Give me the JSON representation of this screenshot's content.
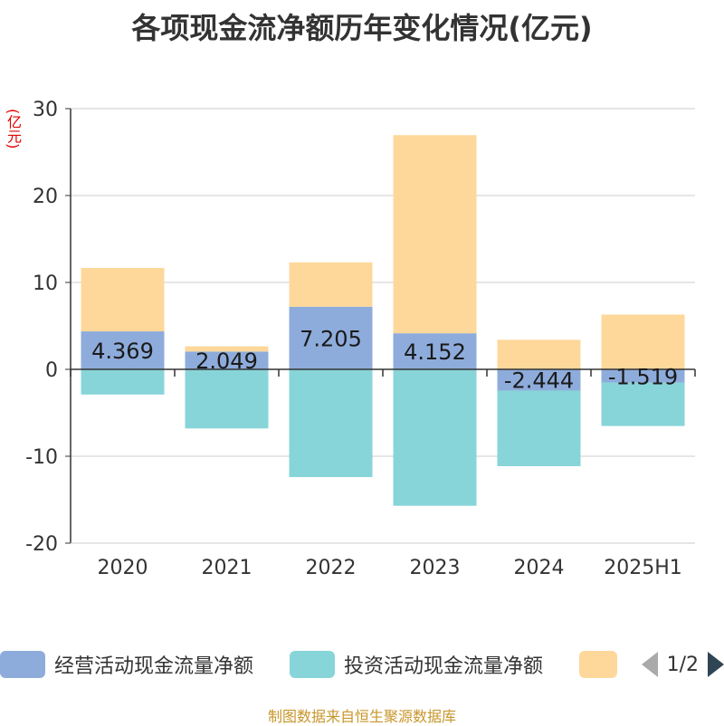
{
  "title": "各项现金流净额历年变化情况(亿元)",
  "unit_label": "(亿元)",
  "source": "制图数据来自恒生聚源数据库",
  "colors": {
    "operating": "#8eacdb",
    "investing": "#87d5d8",
    "financing": "#fdd89a"
  },
  "legend": {
    "items": [
      {
        "label": "经营活动现金流量净额",
        "color": "#8eacdb"
      },
      {
        "label": "投资活动现金流量净额",
        "color": "#87d5d8"
      },
      {
        "label": "",
        "color": "#fdd89a"
      }
    ],
    "page": "1/2"
  },
  "chart_data": {
    "type": "bar",
    "stacked": true,
    "categories": [
      "2020",
      "2021",
      "2022",
      "2023",
      "2024",
      "2025H1"
    ],
    "series": [
      {
        "name": "经营活动现金流量净额",
        "values": [
          4.369,
          2.049,
          7.205,
          4.152,
          -2.444,
          -1.519
        ],
        "show_labels": true
      },
      {
        "name": "投资活动现金流量净额",
        "values": [
          -2.9,
          -6.8,
          -12.4,
          -15.7,
          -8.7,
          -5.0
        ],
        "show_labels": false
      },
      {
        "name": "",
        "values": [
          7.3,
          0.6,
          5.1,
          22.8,
          3.4,
          6.3
        ],
        "show_labels": false
      }
    ],
    "ylim": [
      -20,
      30
    ],
    "yticks": [
      -20,
      -10,
      0,
      10,
      20,
      30
    ],
    "grid": true,
    "legend_position": "bottom"
  }
}
